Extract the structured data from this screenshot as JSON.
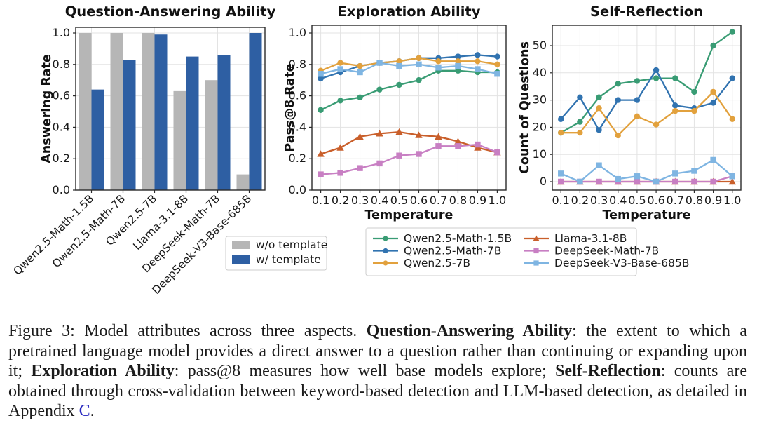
{
  "figure_label": "Figure 3",
  "chart_data": [
    {
      "type": "bar",
      "title": "Question-Answering Ability",
      "xlabel": "",
      "ylabel": "Answering Rate",
      "ylim": [
        0.0,
        1.04
      ],
      "grid": true,
      "yticks": {
        "values": [
          0.0,
          0.2,
          0.4,
          0.6,
          0.8,
          1.0
        ],
        "labels": [
          "0.0",
          "0.2",
          "0.4",
          "0.6",
          "0.8",
          "1.0"
        ]
      },
      "categories": [
        "Qwen2.5-Math-1.5B",
        "Qwen2.5-Math-7B",
        "Qwen2.5-7B",
        "Llama-3.1-8B",
        "DeepSeek-Math-7B",
        "DeepSeek-V3-Base-685B"
      ],
      "series": [
        {
          "name": "w/o template",
          "color": "#b6b6b6",
          "values": [
            1.0,
            1.0,
            1.0,
            0.63,
            0.7,
            0.1
          ]
        },
        {
          "name": "w/ template",
          "color": "#2e5fa3",
          "values": [
            0.64,
            0.83,
            0.99,
            0.85,
            0.86,
            1.0
          ]
        }
      ],
      "legend": {
        "position": "below-right",
        "items": [
          "w/o template",
          "w/ template"
        ]
      }
    },
    {
      "type": "line",
      "title": "Exploration Ability",
      "xlabel": "Temperature",
      "ylabel": "Pass@8 Rate",
      "ylim": [
        0.0,
        1.04
      ],
      "grid": true,
      "x": [
        0.1,
        0.2,
        0.3,
        0.4,
        0.5,
        0.6,
        0.7,
        0.8,
        0.9,
        1.0
      ],
      "xticklabels": [
        "0.1",
        "0.2",
        "0.3",
        "0.4",
        "0.5",
        "0.6",
        "0.7",
        "0.8",
        "0.9",
        "1.0"
      ],
      "yticks": {
        "values": [
          0.0,
          0.2,
          0.4,
          0.6,
          0.8,
          1.0
        ],
        "labels": [
          "0.0",
          "0.2",
          "0.4",
          "0.6",
          "0.8",
          "1.0"
        ]
      },
      "series": [
        {
          "name": "Qwen2.5-Math-1.5B",
          "color": "#399c74",
          "marker": "circle",
          "values": [
            0.51,
            0.57,
            0.59,
            0.64,
            0.67,
            0.7,
            0.76,
            0.76,
            0.75,
            0.75
          ]
        },
        {
          "name": "Qwen2.5-Math-7B",
          "color": "#3173b0",
          "marker": "circle",
          "values": [
            0.71,
            0.75,
            0.79,
            0.81,
            0.82,
            0.84,
            0.84,
            0.85,
            0.86,
            0.85
          ]
        },
        {
          "name": "Qwen2.5-7B",
          "color": "#e2a13d",
          "marker": "circle",
          "values": [
            0.76,
            0.81,
            0.79,
            0.81,
            0.82,
            0.84,
            0.82,
            0.82,
            0.82,
            0.8
          ]
        },
        {
          "name": "Llama-3.1-8B",
          "color": "#c95f2b",
          "marker": "triangle",
          "values": [
            0.23,
            0.27,
            0.34,
            0.36,
            0.37,
            0.35,
            0.34,
            0.31,
            0.27,
            0.24
          ]
        },
        {
          "name": "DeepSeek-Math-7B",
          "color": "#c87fc3",
          "marker": "square",
          "values": [
            0.1,
            0.11,
            0.14,
            0.17,
            0.22,
            0.23,
            0.28,
            0.28,
            0.29,
            0.24
          ]
        },
        {
          "name": "DeepSeek-V3-Base-685B",
          "color": "#7fb5e2",
          "marker": "square",
          "values": [
            0.74,
            0.77,
            0.75,
            0.81,
            0.79,
            0.8,
            0.78,
            0.79,
            0.77,
            0.74
          ]
        }
      ]
    },
    {
      "type": "line",
      "title": "Self-Reflection",
      "xlabel": "Temperature",
      "ylabel": "Count of Questions",
      "ylim": [
        -3.2,
        57.5
      ],
      "grid": true,
      "x": [
        0.1,
        0.2,
        0.3,
        0.4,
        0.5,
        0.6,
        0.7,
        0.8,
        0.9,
        1.0
      ],
      "xticklabels": [
        "0.1",
        "0.2",
        "0.3",
        "0.4",
        "0.5",
        "0.6",
        "0.7",
        "0.8",
        "0.9",
        "1.0"
      ],
      "yticks": {
        "values": [
          0,
          10,
          20,
          30,
          40,
          50
        ],
        "labels": [
          "0",
          "10",
          "20",
          "30",
          "40",
          "50"
        ]
      },
      "series": [
        {
          "name": "Qwen2.5-Math-1.5B",
          "color": "#399c74",
          "marker": "circle",
          "values": [
            18,
            22,
            31,
            36,
            37,
            38,
            38,
            33,
            50,
            55
          ]
        },
        {
          "name": "Qwen2.5-Math-7B",
          "color": "#3173b0",
          "marker": "circle",
          "values": [
            23,
            31,
            19,
            30,
            30,
            41,
            28,
            27,
            29,
            38
          ]
        },
        {
          "name": "Qwen2.5-7B",
          "color": "#e2a13d",
          "marker": "circle",
          "values": [
            18,
            18,
            27,
            17,
            24,
            21,
            26,
            26,
            33,
            23
          ]
        },
        {
          "name": "Llama-3.1-8B",
          "color": "#c95f2b",
          "marker": "triangle",
          "values": [
            0,
            0,
            0,
            0,
            0,
            0,
            0,
            0,
            0,
            0
          ]
        },
        {
          "name": "DeepSeek-Math-7B",
          "color": "#c87fc3",
          "marker": "square",
          "values": [
            0,
            0,
            0,
            0,
            0,
            0,
            0,
            0,
            0,
            2
          ]
        },
        {
          "name": "DeepSeek-V3-Base-685B",
          "color": "#7fb5e2",
          "marker": "square",
          "values": [
            3,
            0,
            6,
            1,
            2,
            0,
            3,
            4,
            8,
            2
          ]
        }
      ],
      "legend": {
        "position": "shared-below",
        "columns": [
          [
            "Qwen2.5-Math-1.5B",
            "Qwen2.5-Math-7B",
            "Qwen2.5-7B"
          ],
          [
            "Llama-3.1-8B",
            "DeepSeek-Math-7B",
            "DeepSeek-V3-Base-685B"
          ]
        ]
      }
    }
  ],
  "caption": {
    "segments": [
      {
        "text": "Figure 3: Model attributes across three aspects. ",
        "style": "normal"
      },
      {
        "text": "Question-Answering Ability",
        "style": "bold"
      },
      {
        "text": ": the extent to which a pretrained language model provides a direct answer to a question rather than continuing or expanding upon it; ",
        "style": "normal"
      },
      {
        "text": "Exploration Ability",
        "style": "bold"
      },
      {
        "text": ": pass@8 measures how well base models explore; ",
        "style": "normal"
      },
      {
        "text": "Self-Reflection",
        "style": "bold"
      },
      {
        "text": ": counts are obtained through cross-validation between keyword-based detection and LLM-based detection, as detailed in Appendix ",
        "style": "normal"
      },
      {
        "text": "C",
        "style": "link"
      },
      {
        "text": ".",
        "style": "normal"
      }
    ],
    "link_color": "#2929c0"
  }
}
